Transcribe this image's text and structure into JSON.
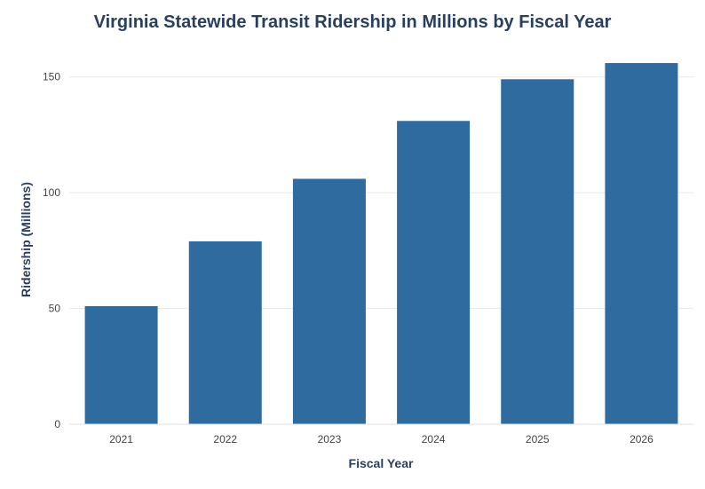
{
  "chart_data": {
    "type": "bar",
    "title": "Virginia Statewide Transit Ridership in Millions by Fiscal Year",
    "xlabel": "Fiscal Year",
    "ylabel": "Ridership (Millions)",
    "categories": [
      "2021",
      "2022",
      "2023",
      "2024",
      "2025",
      "2026"
    ],
    "values": [
      51,
      79,
      106,
      131,
      149,
      156
    ],
    "ylim": [
      0,
      161
    ],
    "yticks": [
      0,
      50,
      100,
      150
    ],
    "grid": true,
    "legend": "none",
    "bar_color": "#2f6b9e"
  }
}
